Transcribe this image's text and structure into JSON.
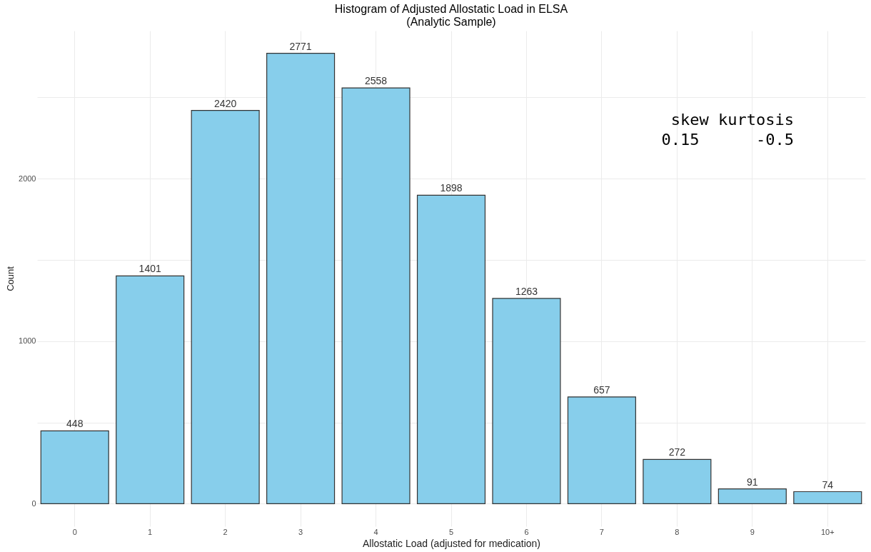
{
  "chart_data": {
    "type": "bar",
    "title": "Histogram of Adjusted Allostatic Load in ELSA",
    "subtitle": "(Analytic Sample)",
    "xlabel": "Allostatic Load (adjusted for medication)",
    "ylabel": "Count",
    "categories": [
      "0",
      "1",
      "2",
      "3",
      "4",
      "5",
      "6",
      "7",
      "8",
      "9",
      "10+"
    ],
    "values": [
      448,
      1401,
      2420,
      2771,
      2558,
      1898,
      1263,
      657,
      272,
      91,
      74
    ],
    "color": "#87ceeb",
    "data_labels": true,
    "ylim": [
      -139,
      2910
    ],
    "yticks": [
      0,
      {
        "value": 500,
        "label": null
      },
      1000,
      {
        "value": 1500,
        "label": null
      },
      2000,
      {
        "value": 2500,
        "label": null
      }
    ],
    "grid": true,
    "annotations": [
      "skew kurtosis",
      "0.15      -0.5"
    ]
  }
}
